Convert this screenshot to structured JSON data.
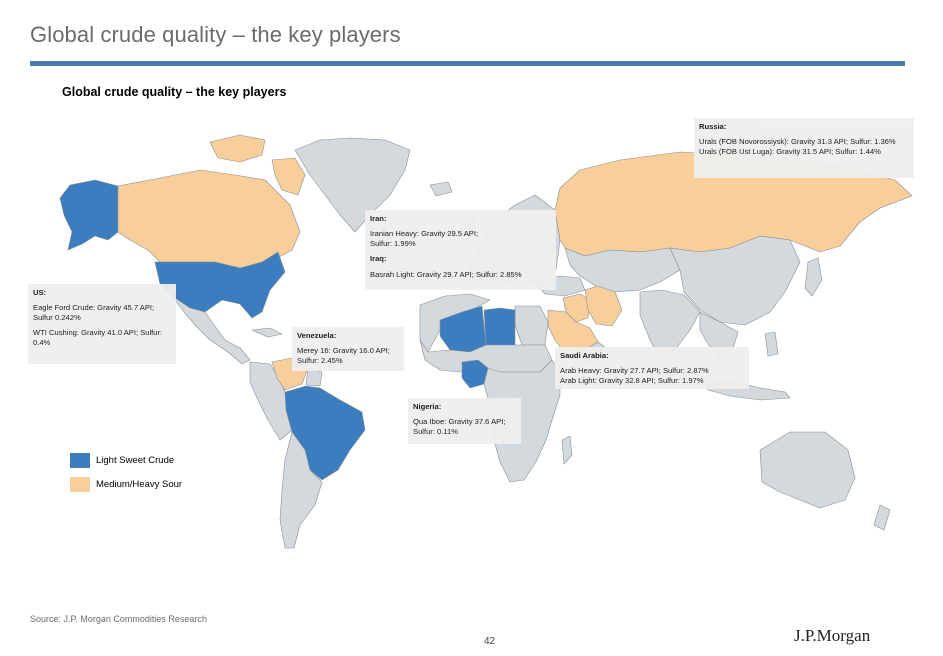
{
  "slide": {
    "title": "Global crude quality – the key players",
    "rule_color": "#4a7aae"
  },
  "map": {
    "title": "Global crude quality – the key players",
    "colors": {
      "light_sweet": "#3b7dbf",
      "medium_heavy_sour": "#f8cf9a",
      "other": "#d4d9de",
      "border": "#8a8f95"
    }
  },
  "callouts": {
    "russia": {
      "head": "Russia:",
      "lines": [
        "Urals (FOB Novorossiysk): Gravity 31.3 API; Sulfur: 1.36%",
        "Urals (FOB Ust Luga): Gravity 31.5 API; Sulfur: 1.44%"
      ]
    },
    "iran": {
      "head": "Iran:",
      "lines": [
        "Iranian Heavy: Gravity 29.5 API;",
        "Sulfur: 1.99%"
      ]
    },
    "iraq": {
      "head": "Iraq:",
      "lines": [
        "Basrah Light: Gravity 29.7 API; Sulfur: 2.85%"
      ]
    },
    "us": {
      "head": "US:",
      "lines": [
        "Eagle Ford Crude: Gravity 45.7 API;",
        "Sulfur 0.242%",
        "WTI Cushing: Gravity 41.0 API; Sulfur:",
        "0.4%"
      ]
    },
    "venezuela": {
      "head": "Venezuela:",
      "lines": [
        "Merey 16: Gravity 16.0 API;",
        "Sulfur: 2.45%"
      ]
    },
    "saudi": {
      "head": "Saudi Arabia:",
      "lines": [
        "Arab Heavy: Gravity 27.7 API; Sulfur: 2.87%",
        "Arab Light: Gravity 32.8 API; Sulfur: 1.97%"
      ]
    },
    "nigeria": {
      "head": "Nigeria:",
      "lines": [
        "Qua Iboe: Gravity 37.6 API;",
        "Sulfur: 0.11%"
      ]
    }
  },
  "legend": {
    "items": [
      {
        "label": "Light Sweet Crude",
        "color": "#3b7dbf"
      },
      {
        "label": "Medium/Heavy Sour",
        "color": "#f8cf9a"
      }
    ]
  },
  "footer": {
    "source": "Source: J.P. Morgan Commodities Research",
    "page_number": "42",
    "logo": "J.P.Morgan"
  }
}
